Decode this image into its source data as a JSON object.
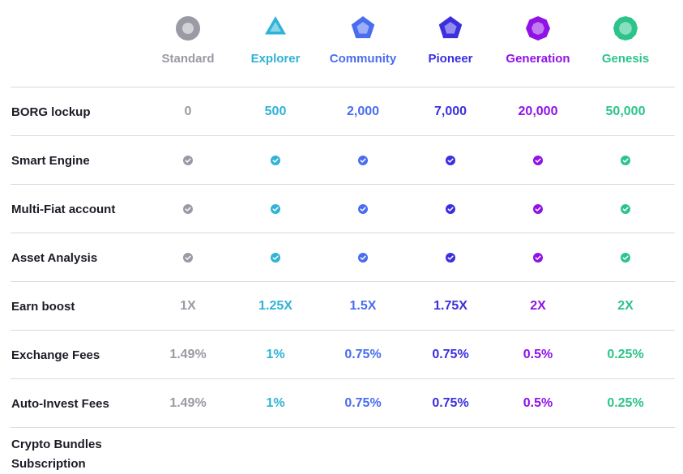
{
  "tiers": [
    {
      "name": "Standard",
      "color": "#9a9aa4",
      "icon": "standard-tier-icon"
    },
    {
      "name": "Explorer",
      "color": "#2fb3d6",
      "icon": "explorer-tier-icon"
    },
    {
      "name": "Community",
      "color": "#4a6df0",
      "icon": "community-tier-icon"
    },
    {
      "name": "Pioneer",
      "color": "#3b2fe0",
      "icon": "pioneer-tier-icon"
    },
    {
      "name": "Generation",
      "color": "#9012e6",
      "icon": "generation-tier-icon"
    },
    {
      "name": "Genesis",
      "color": "#2cc48a",
      "icon": "genesis-tier-icon"
    }
  ],
  "rows": [
    {
      "label": "BORG lockup",
      "values": [
        "0",
        "500",
        "2,000",
        "7,000",
        "20,000",
        "50,000"
      ]
    },
    {
      "label": "Smart Engine",
      "check": true
    },
    {
      "label": "Multi-Fiat account",
      "check": true
    },
    {
      "label": "Asset Analysis",
      "check": true
    },
    {
      "label": "Earn boost",
      "values": [
        "1X",
        "1.25X",
        "1.5X",
        "1.75X",
        "2X",
        "2X"
      ]
    },
    {
      "label": "Exchange Fees",
      "values": [
        "1.49%",
        "1%",
        "0.75%",
        "0.75%",
        "0.5%",
        "0.25%"
      ]
    },
    {
      "label": "Auto-Invest Fees",
      "values": [
        "1.49%",
        "1%",
        "0.75%",
        "0.75%",
        "0.5%",
        "0.25%"
      ]
    },
    {
      "label": "Crypto Bundles Subscription"
    }
  ],
  "check_icon": "check-circle-icon"
}
